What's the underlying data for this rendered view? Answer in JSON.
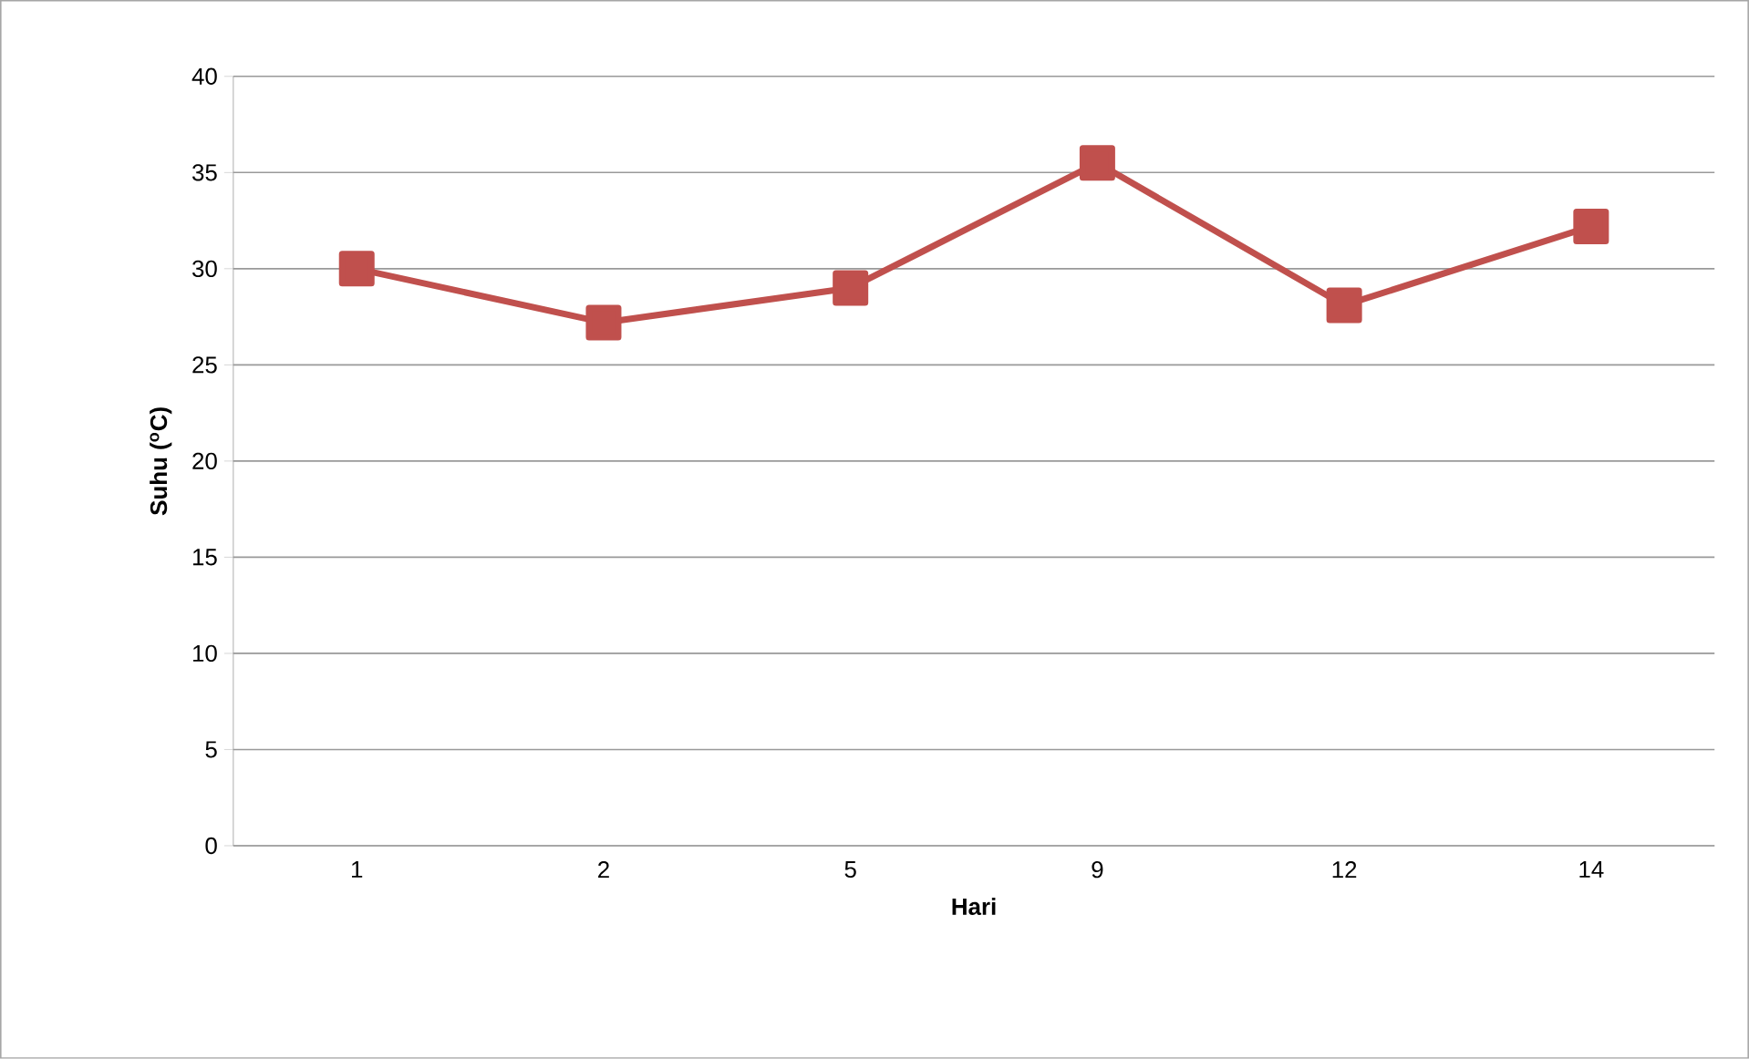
{
  "chart_data": {
    "type": "line",
    "xlabel": "Hari",
    "ylabel": "Suhu ($^{o}$C)",
    "categories": [
      "1",
      "2",
      "5",
      "9",
      "12",
      "14"
    ],
    "series": [
      {
        "color": "#c0504d",
        "values": [
          30,
          27.2,
          29,
          35.5,
          28.1,
          32.2
        ]
      }
    ],
    "ylim": [
      0,
      40
    ],
    "yticks": [
      0,
      5,
      10,
      15,
      20,
      25,
      30,
      35,
      40
    ],
    "grid": "y",
    "marker": "square",
    "line_style": "solid"
  }
}
